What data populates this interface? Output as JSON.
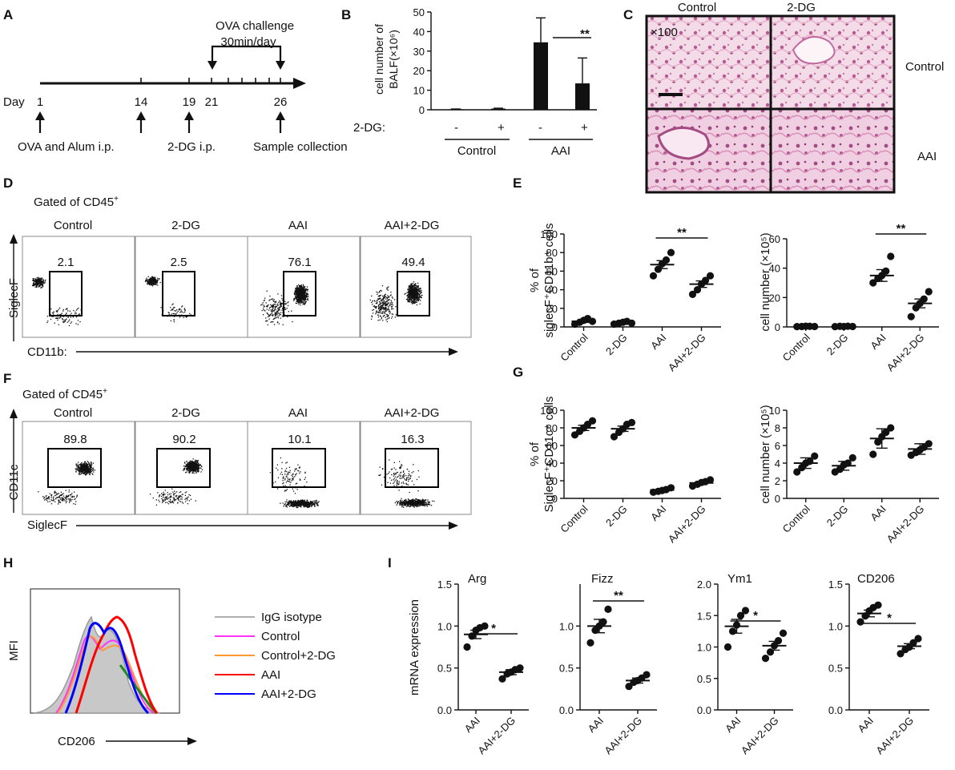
{
  "panels": {
    "A": "A",
    "B": "B",
    "C": "C",
    "D": "D",
    "E": "E",
    "F": "F",
    "G": "G",
    "H": "H",
    "I": "I"
  },
  "timeline": {
    "challenge_title": "OVA challenge",
    "challenge_sub": "30min/day",
    "day_label": "Day",
    "days": [
      "1",
      "14",
      "19",
      "21",
      "26"
    ],
    "labels": [
      "OVA and Alum i.p.",
      "2-DG i.p.",
      "Sample collection"
    ]
  },
  "histology": {
    "col_labels": [
      "Control",
      "2-DG"
    ],
    "row_labels": [
      "Control",
      "AAI"
    ],
    "magnification": "×100"
  },
  "flow_D": {
    "gate_header": "Gated of CD45",
    "gate_sup": "+",
    "groups": [
      "Control",
      "2-DG",
      "AAI",
      "AAI+2-DG"
    ],
    "values": [
      "2.1",
      "2.5",
      "76.1",
      "49.4"
    ],
    "y_axis": "SiglecF",
    "x_axis": "CD11b:"
  },
  "flow_F": {
    "gate_header": "Gated of CD45",
    "gate_sup": "+",
    "groups": [
      "Control",
      "2-DG",
      "AAI",
      "AAI+2-DG"
    ],
    "values": [
      "89.8",
      "90.2",
      "10.1",
      "16.3"
    ],
    "y_axis": "CD11c",
    "x_axis": "SiglecF"
  },
  "histogram_H": {
    "x_axis": "CD206",
    "y_axis": "MFI",
    "legend": [
      {
        "label": "IgG isotype",
        "color": "#b0b0b0"
      },
      {
        "label": "Control",
        "color": "#ff33ff"
      },
      {
        "label": "Control+2-DG",
        "color": "#ff9933"
      },
      {
        "label": "AAI",
        "color": "#ff0000"
      },
      {
        "label": "AAI+2-DG",
        "color": "#0000ff"
      }
    ]
  },
  "chart_data": [
    {
      "id": "B",
      "type": "bar",
      "ylabel_line1": "cell number of",
      "ylabel_line2": "BALF(×10⁶)",
      "ylim": [
        0,
        50
      ],
      "yticks": [
        "0",
        "10",
        "20",
        "30",
        "40",
        "50"
      ],
      "row_label": "2-DG:",
      "treatment": [
        "-",
        "+",
        "-",
        "+"
      ],
      "groups": [
        "Control",
        "AAI"
      ],
      "values": [
        0.3,
        0.6,
        34.5,
        13.5
      ],
      "errors": [
        0.1,
        0.2,
        12.5,
        13
      ],
      "significance": "**"
    },
    {
      "id": "E1",
      "type": "scatter",
      "ylabel_line1": "% of",
      "ylabel_line2": "siglecF⁺CD11b⁺ cells",
      "ylim": [
        0,
        100
      ],
      "yticks": [
        "0",
        "20",
        "40",
        "60",
        "80",
        "100"
      ],
      "categories": [
        "Control",
        "2-DG",
        "AAI",
        "AAI+2-DG"
      ],
      "points": [
        [
          3,
          5,
          7,
          9,
          6
        ],
        [
          3,
          4,
          5,
          6,
          4
        ],
        [
          55,
          62,
          68,
          72,
          80
        ],
        [
          35,
          40,
          46,
          50,
          55
        ]
      ],
      "means": [
        6,
        4.5,
        67,
        46
      ],
      "sem": [
        1.2,
        0.6,
        4.3,
        3.5
      ],
      "significance": "**"
    },
    {
      "id": "E2",
      "type": "scatter",
      "ylabel_line1": "cell number (×10⁵)",
      "ylim": [
        0,
        60
      ],
      "yticks": [
        "0",
        "20",
        "40",
        "60"
      ],
      "categories": [
        "Control",
        "2-DG",
        "AAI",
        "AAI+2-DG"
      ],
      "points": [
        [
          0.2,
          0.3,
          0.5,
          0.4,
          0.3
        ],
        [
          0.2,
          0.4,
          0.3,
          0.5,
          0.3
        ],
        [
          30,
          33,
          35,
          38,
          48
        ],
        [
          7,
          13,
          16,
          19,
          24
        ]
      ],
      "means": [
        0.4,
        0.4,
        35,
        16
      ],
      "sem": [
        0.1,
        0.1,
        4,
        3
      ],
      "significance": "**"
    },
    {
      "id": "G1",
      "type": "scatter",
      "ylabel_line1": "% of",
      "ylabel_line2": "SiglecF⁺CD11c⁺ cells",
      "ylim": [
        0,
        100
      ],
      "yticks": [
        "0",
        "20",
        "40",
        "60",
        "80",
        "100"
      ],
      "categories": [
        "Control",
        "2-DG",
        "AAI",
        "AAI+2-DG"
      ],
      "points": [
        [
          72,
          76,
          80,
          84,
          88
        ],
        [
          70,
          75,
          79,
          84,
          86
        ],
        [
          7,
          8,
          9,
          10,
          12
        ],
        [
          14,
          16,
          18,
          19,
          21
        ]
      ],
      "means": [
        80,
        79,
        9.5,
        17.5
      ],
      "sem": [
        3,
        3,
        1,
        1.5
      ]
    },
    {
      "id": "G2",
      "type": "scatter",
      "ylabel_line1": "cell number (×10⁵)",
      "ylim": [
        0,
        10
      ],
      "yticks": [
        "0",
        "2",
        "4",
        "6",
        "8",
        "10"
      ],
      "categories": [
        "Control",
        "2-DG",
        "AAI",
        "AAI+2-DG"
      ],
      "points": [
        [
          3,
          3.5,
          4,
          4.2,
          4.8
        ],
        [
          3,
          3.3,
          3.8,
          4,
          4.6
        ],
        [
          5,
          6.4,
          7,
          7.5,
          8
        ],
        [
          4.9,
          5.2,
          5.5,
          5.8,
          6.2
        ]
      ],
      "means": [
        4,
        3.7,
        6.8,
        5.6
      ],
      "sem": [
        0.6,
        0.5,
        1.1,
        0.6
      ]
    },
    {
      "id": "I1",
      "type": "scatter",
      "title": "Arg",
      "ylabel_line1": "mRNA expression",
      "ylim": [
        0,
        1.5
      ],
      "yticks": [
        "0.0",
        "0.5",
        "1.0",
        "1.5"
      ],
      "categories": [
        "AAI",
        "AAI+2-DG"
      ],
      "points": [
        [
          0.75,
          0.88,
          0.95,
          0.98,
          1.0
        ],
        [
          0.37,
          0.43,
          0.45,
          0.48,
          0.5
        ]
      ],
      "means": [
        0.9,
        0.45
      ],
      "sem": [
        0.05,
        0.03
      ],
      "significance": "*"
    },
    {
      "id": "I2",
      "type": "scatter",
      "title": "Fizz",
      "ylim": [
        0,
        1.5
      ],
      "yticks": [
        "0.0",
        "0.5",
        "1.0"
      ],
      "categories": [
        "AAI",
        "AAI+2-DG"
      ],
      "points": [
        [
          0.8,
          0.95,
          1.0,
          1.05,
          1.2
        ],
        [
          0.28,
          0.33,
          0.35,
          0.38,
          0.42
        ]
      ],
      "means": [
        1.0,
        0.35
      ],
      "sem": [
        0.08,
        0.03
      ],
      "significance": "**"
    },
    {
      "id": "I3",
      "type": "scatter",
      "title": "Ym1",
      "ylim": [
        0,
        2.0
      ],
      "yticks": [
        "0.0",
        "0.5",
        "1.0",
        "1.5",
        "2.0"
      ],
      "categories": [
        "AAI",
        "AAI+2-DG"
      ],
      "points": [
        [
          1.0,
          1.25,
          1.35,
          1.5,
          1.58
        ],
        [
          0.82,
          0.92,
          1.02,
          1.1,
          1.22
        ]
      ],
      "means": [
        1.33,
        1.02
      ],
      "sem": [
        0.11,
        0.07
      ],
      "significance": "*"
    },
    {
      "id": "I4",
      "type": "scatter",
      "title": "CD206",
      "ylim": [
        0,
        1.5
      ],
      "yticks": [
        "0.0",
        "0.5",
        "1.0",
        "1.5"
      ],
      "categories": [
        "AAI",
        "AAI+2-DG"
      ],
      "points": [
        [
          1.05,
          1.12,
          1.18,
          1.22,
          1.25
        ],
        [
          0.67,
          0.72,
          0.75,
          0.8,
          0.85
        ]
      ],
      "means": [
        1.15,
        0.76
      ],
      "sem": [
        0.04,
        0.03
      ],
      "significance": "*"
    }
  ]
}
